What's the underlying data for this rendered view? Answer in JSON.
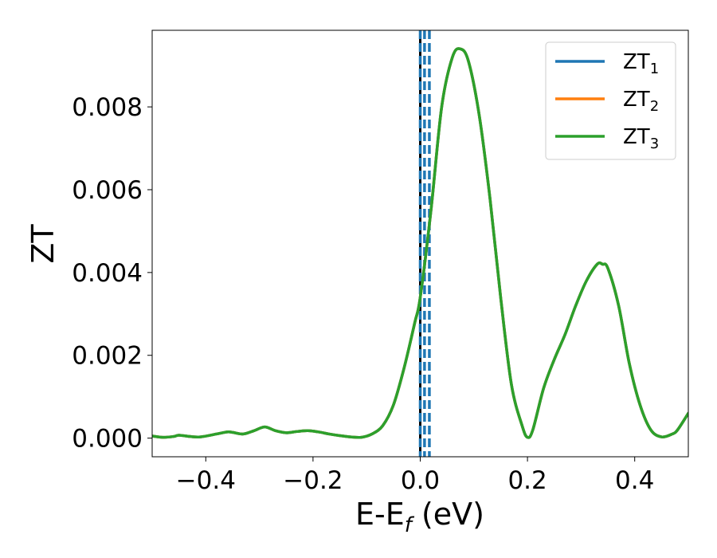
{
  "chart_data": {
    "type": "line",
    "xlabel": {
      "main": "E-E",
      "sub": "f",
      "suffix": " (eV)"
    },
    "ylabel": "ZT",
    "xlim": [
      -0.5,
      0.5
    ],
    "ylim": [
      -0.00045,
      0.00985
    ],
    "x_ticks": [
      -0.4,
      -0.2,
      0.0,
      0.2,
      0.4
    ],
    "x_tick_labels": [
      "−0.4",
      "−0.2",
      "0.0",
      "0.2",
      "0.4"
    ],
    "y_ticks": [
      0.0,
      0.002,
      0.004,
      0.006,
      0.008
    ],
    "y_tick_labels": [
      "0.000",
      "0.002",
      "0.004",
      "0.006",
      "0.008"
    ],
    "grid": false,
    "legend_position": "top-right",
    "colors": {
      "ZT1": "#1f77b4",
      "ZT2": "#ff7f0e",
      "ZT3": "#2ca02c",
      "fermi": "#000000"
    },
    "legend": [
      {
        "main": "ZT",
        "sub": "1",
        "color": "#1f77b4"
      },
      {
        "main": "ZT",
        "sub": "2",
        "color": "#ff7f0e"
      },
      {
        "main": "ZT",
        "sub": "3",
        "color": "#2ca02c"
      }
    ],
    "vertical_lines": [
      {
        "x": 0.0,
        "style": "solid",
        "color": "#000000"
      },
      {
        "x": 0.0,
        "style": "dashed",
        "color": "#1f77b4"
      },
      {
        "x": 0.008,
        "style": "dashed",
        "color": "#1f77b4"
      },
      {
        "x": 0.017,
        "style": "dashed",
        "color": "#1f77b4"
      }
    ],
    "series": [
      {
        "name": "ZT1",
        "color": "#1f77b4",
        "x": [
          -0.5,
          -0.48,
          -0.46,
          -0.45,
          -0.43,
          -0.41,
          -0.38,
          -0.36,
          -0.35,
          -0.33,
          -0.31,
          -0.29,
          -0.27,
          -0.25,
          -0.23,
          -0.21,
          -0.19,
          -0.17,
          -0.15,
          -0.13,
          -0.11,
          -0.09,
          -0.07,
          -0.05,
          -0.03,
          -0.01,
          0.0,
          0.02,
          0.04,
          0.06,
          0.075,
          0.09,
          0.11,
          0.13,
          0.15,
          0.17,
          0.19,
          0.2,
          0.21,
          0.23,
          0.25,
          0.27,
          0.29,
          0.31,
          0.33,
          0.34,
          0.35,
          0.37,
          0.39,
          0.41,
          0.43,
          0.45,
          0.47,
          0.48,
          0.5
        ],
        "y": [
          5e-05,
          2e-05,
          4e-05,
          7e-05,
          4e-05,
          3e-05,
          0.0001,
          0.00015,
          0.00014,
          0.0001,
          0.00018,
          0.00027,
          0.00018,
          0.00013,
          0.00016,
          0.00018,
          0.00015,
          0.0001,
          6e-05,
          3e-05,
          2e-05,
          0.0001,
          0.0003,
          0.0008,
          0.0017,
          0.0028,
          0.0034,
          0.0055,
          0.008,
          0.0092,
          0.0094,
          0.0091,
          0.0078,
          0.0058,
          0.0034,
          0.0013,
          0.0003,
          2e-05,
          0.0002,
          0.0012,
          0.0019,
          0.0025,
          0.0032,
          0.0038,
          0.0042,
          0.0042,
          0.0041,
          0.0032,
          0.0018,
          0.0008,
          0.0002,
          3e-05,
          0.0001,
          0.0002,
          0.0006
        ]
      },
      {
        "name": "ZT2",
        "color": "#ff7f0e",
        "x": [
          -0.5,
          -0.48,
          -0.46,
          -0.45,
          -0.43,
          -0.41,
          -0.38,
          -0.36,
          -0.35,
          -0.33,
          -0.31,
          -0.29,
          -0.27,
          -0.25,
          -0.23,
          -0.21,
          -0.19,
          -0.17,
          -0.15,
          -0.13,
          -0.11,
          -0.09,
          -0.07,
          -0.05,
          -0.03,
          -0.01,
          0.0,
          0.02,
          0.04,
          0.06,
          0.075,
          0.09,
          0.11,
          0.13,
          0.15,
          0.17,
          0.19,
          0.2,
          0.21,
          0.23,
          0.25,
          0.27,
          0.29,
          0.31,
          0.33,
          0.34,
          0.35,
          0.37,
          0.39,
          0.41,
          0.43,
          0.45,
          0.47,
          0.48,
          0.5
        ],
        "y": [
          5e-05,
          2e-05,
          4e-05,
          7e-05,
          4e-05,
          3e-05,
          0.0001,
          0.00015,
          0.00014,
          0.0001,
          0.00018,
          0.00027,
          0.00018,
          0.00013,
          0.00016,
          0.00018,
          0.00015,
          0.0001,
          6e-05,
          3e-05,
          2e-05,
          0.0001,
          0.0003,
          0.0008,
          0.0017,
          0.0028,
          0.0034,
          0.0055,
          0.008,
          0.0092,
          0.0094,
          0.0091,
          0.0078,
          0.0058,
          0.0034,
          0.0013,
          0.0003,
          2e-05,
          0.0002,
          0.0012,
          0.0019,
          0.0025,
          0.0032,
          0.0038,
          0.0042,
          0.0042,
          0.0041,
          0.0032,
          0.0018,
          0.0008,
          0.0002,
          3e-05,
          0.0001,
          0.0002,
          0.0006
        ]
      },
      {
        "name": "ZT3",
        "color": "#2ca02c",
        "x": [
          -0.5,
          -0.48,
          -0.46,
          -0.45,
          -0.43,
          -0.41,
          -0.38,
          -0.36,
          -0.35,
          -0.33,
          -0.31,
          -0.29,
          -0.27,
          -0.25,
          -0.23,
          -0.21,
          -0.19,
          -0.17,
          -0.15,
          -0.13,
          -0.11,
          -0.09,
          -0.07,
          -0.05,
          -0.03,
          -0.01,
          0.0,
          0.02,
          0.04,
          0.06,
          0.075,
          0.09,
          0.11,
          0.13,
          0.15,
          0.17,
          0.19,
          0.2,
          0.21,
          0.23,
          0.25,
          0.27,
          0.29,
          0.31,
          0.33,
          0.34,
          0.35,
          0.37,
          0.39,
          0.41,
          0.43,
          0.45,
          0.47,
          0.48,
          0.5
        ],
        "y": [
          5e-05,
          2e-05,
          4e-05,
          7e-05,
          4e-05,
          3e-05,
          0.0001,
          0.00015,
          0.00014,
          0.0001,
          0.00018,
          0.00027,
          0.00018,
          0.00013,
          0.00016,
          0.00018,
          0.00015,
          0.0001,
          6e-05,
          3e-05,
          2e-05,
          0.0001,
          0.0003,
          0.0008,
          0.0017,
          0.0028,
          0.0034,
          0.0055,
          0.008,
          0.0092,
          0.0094,
          0.0091,
          0.0078,
          0.0058,
          0.0034,
          0.0013,
          0.0003,
          2e-05,
          0.0002,
          0.0012,
          0.0019,
          0.0025,
          0.0032,
          0.0038,
          0.0042,
          0.0042,
          0.0041,
          0.0032,
          0.0018,
          0.0008,
          0.0002,
          3e-05,
          0.0001,
          0.0002,
          0.0006
        ]
      }
    ]
  }
}
